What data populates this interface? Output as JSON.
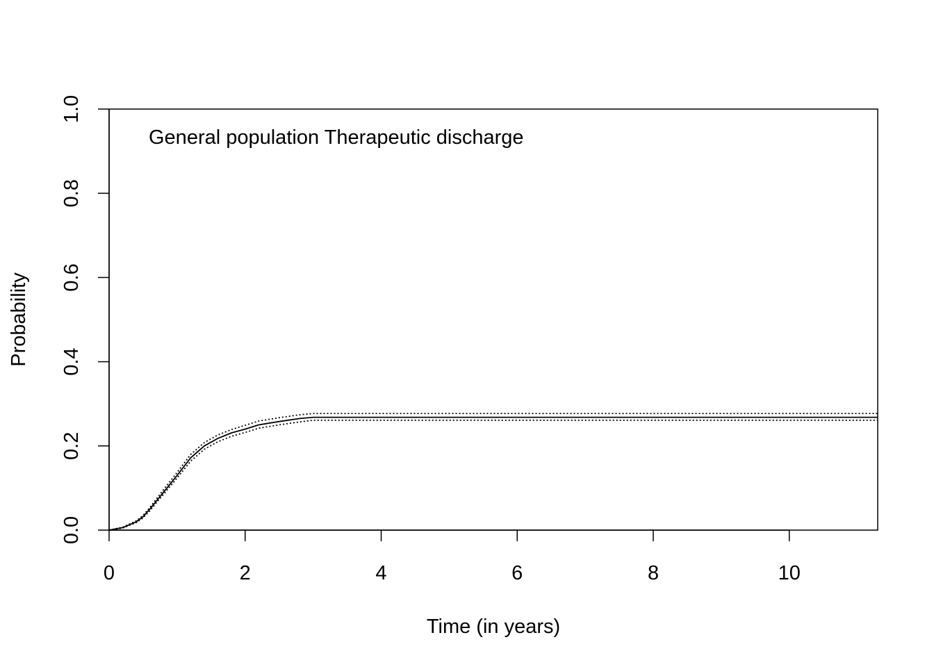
{
  "chart_data": {
    "type": "line",
    "title": "General population Therapeutic discharge",
    "xlabel": "Time (in years)",
    "ylabel": "Probability",
    "xlim": [
      0,
      11.3
    ],
    "ylim": [
      0,
      1
    ],
    "xticks": [
      0,
      2,
      4,
      6,
      8,
      10
    ],
    "xtick_labels": [
      "0",
      "2",
      "4",
      "6",
      "8",
      "10"
    ],
    "yticks": [
      0,
      0.2,
      0.4,
      0.6,
      0.8,
      1
    ],
    "ytick_labels": [
      "0.0",
      "0.2",
      "0.4",
      "0.6",
      "0.8",
      "1.0"
    ],
    "grid": false,
    "series": [
      {
        "name": "estimate",
        "style": "solid",
        "x": [
          0,
          0.2,
          0.4,
          0.5,
          0.6,
          0.7,
          0.8,
          1.0,
          1.2,
          1.4,
          1.6,
          1.8,
          2.0,
          2.2,
          2.5,
          2.8,
          3.0,
          11.3
        ],
        "y": [
          0,
          0.006,
          0.02,
          0.032,
          0.05,
          0.07,
          0.09,
          0.13,
          0.172,
          0.2,
          0.218,
          0.231,
          0.24,
          0.25,
          0.258,
          0.265,
          0.268,
          0.268
        ]
      },
      {
        "name": "upper bound",
        "style": "dotted",
        "x": [
          0,
          0.2,
          0.4,
          0.5,
          0.6,
          0.7,
          0.8,
          1.0,
          1.2,
          1.4,
          1.6,
          1.8,
          2.0,
          2.2,
          2.5,
          2.8,
          3.0,
          11.3
        ],
        "y": [
          0,
          0.007,
          0.022,
          0.035,
          0.054,
          0.075,
          0.096,
          0.137,
          0.18,
          0.208,
          0.226,
          0.239,
          0.249,
          0.259,
          0.267,
          0.274,
          0.277,
          0.277
        ]
      },
      {
        "name": "lower bound",
        "style": "dotted",
        "x": [
          0,
          0.2,
          0.4,
          0.5,
          0.6,
          0.7,
          0.8,
          1.0,
          1.2,
          1.4,
          1.6,
          1.8,
          2.0,
          2.2,
          2.5,
          2.8,
          3.0,
          11.3
        ],
        "y": [
          0,
          0.005,
          0.018,
          0.029,
          0.046,
          0.066,
          0.085,
          0.124,
          0.164,
          0.192,
          0.21,
          0.223,
          0.232,
          0.242,
          0.25,
          0.257,
          0.261,
          0.261
        ]
      }
    ]
  }
}
